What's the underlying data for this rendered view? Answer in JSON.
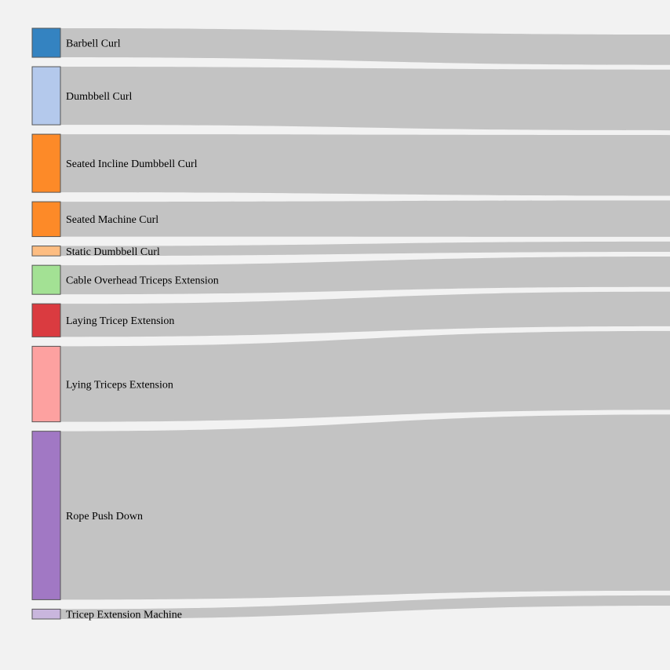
{
  "chart_data": {
    "type": "sankey",
    "title": "",
    "nodes": [
      {
        "label": "Barbell Curl",
        "value": 5,
        "color": "#3483c1"
      },
      {
        "label": "Dumbbell Curl",
        "value": 10,
        "color": "#b4c9ec"
      },
      {
        "label": "Seated Incline Dumbbell Curl",
        "value": 10,
        "color": "#fd8a28"
      },
      {
        "label": "Seated Machine Curl",
        "value": 6,
        "color": "#fd8a28"
      },
      {
        "label": "Static Dumbbell Curl",
        "value": 1.7,
        "color": "#fdbd82"
      },
      {
        "label": "Cable Overhead Triceps Extension",
        "value": 5,
        "color": "#a3e194"
      },
      {
        "label": "Laying Tricep Extension",
        "value": 5.7,
        "color": "#da3b40"
      },
      {
        "label": "Lying Triceps Extension",
        "value": 13,
        "color": "#fda1a0"
      },
      {
        "label": "Rope Push Down",
        "value": 29,
        "color": "#a178c4"
      },
      {
        "label": "Tricep Extension Machine",
        "value": 1.7,
        "color": "#c9b6dd"
      }
    ],
    "link_color": "#c3c3c3",
    "background": "#f2f2f2"
  }
}
